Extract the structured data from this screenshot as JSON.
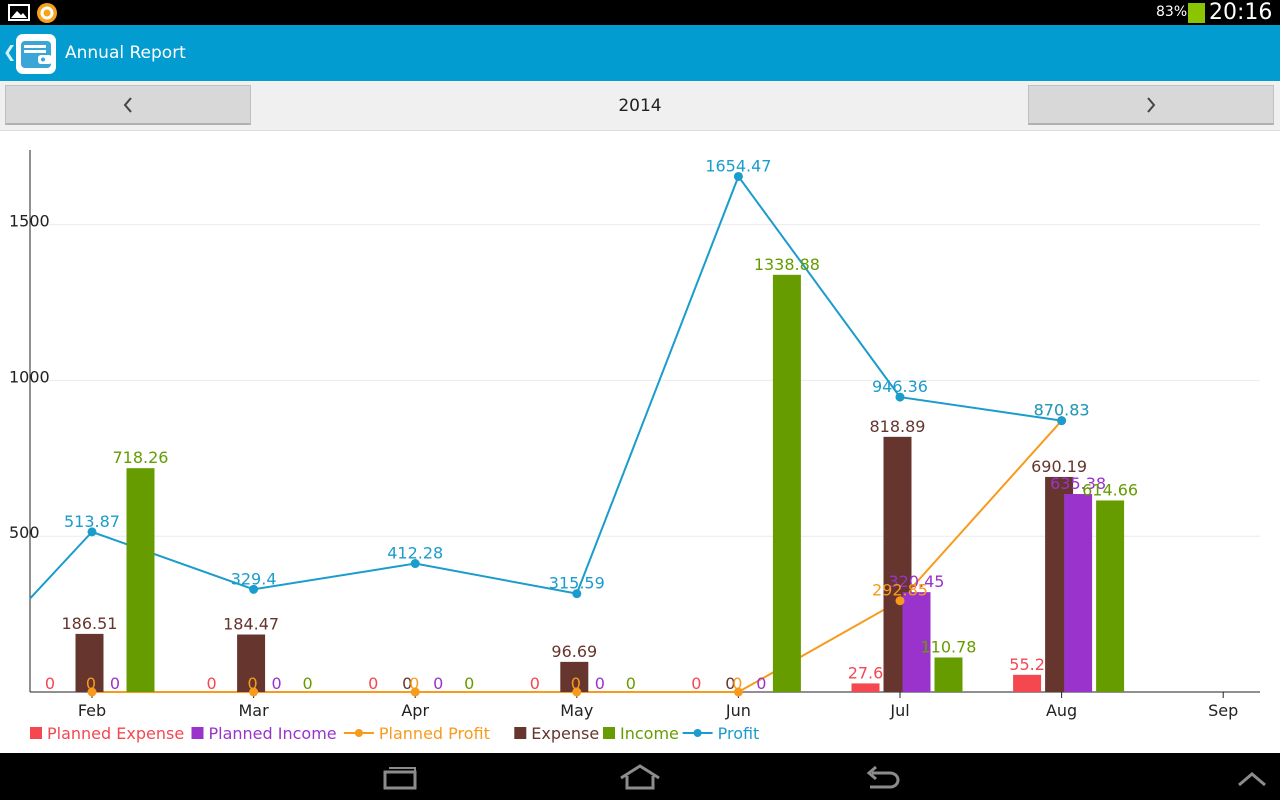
{
  "status_bar": {
    "battery_percent": "83%",
    "time": "20:16",
    "icons": [
      "gallery-icon",
      "app-notification-icon",
      "battery-icon"
    ]
  },
  "app_bar": {
    "title": "Annual Report",
    "icons": [
      "back-chevron-icon",
      "wallet-icon"
    ]
  },
  "year_nav": {
    "year": "2014",
    "icons": [
      "chevron-left-icon",
      "chevron-right-icon"
    ]
  },
  "nav_bar": {
    "icons": [
      "recent-apps-icon",
      "home-icon",
      "back-icon",
      "chevron-up-icon"
    ]
  },
  "colors": {
    "planned_expense": "#f44750",
    "planned_income": "#9a33cc",
    "planned_profit": "#f89a1c",
    "expense": "#66352d",
    "income": "#669c00",
    "profit": "#1a9ccc"
  },
  "chart_data": {
    "type": "bar",
    "title": "",
    "xlabel": "",
    "ylabel": "",
    "categories": [
      "Feb",
      "Mar",
      "Apr",
      "May",
      "Jun",
      "Jul",
      "Aug",
      "Sep"
    ],
    "ylim": [
      0,
      1700
    ],
    "yticks": [
      "500",
      "1000",
      "1500"
    ],
    "grid": true,
    "legend_position": "bottom",
    "series": [
      {
        "name": "Planned Expense",
        "kind": "bar",
        "color_key": "planned_expense",
        "values": [
          0,
          0,
          0,
          0,
          0,
          27.6,
          55.2,
          null
        ],
        "labels": [
          "0",
          "0",
          "0",
          "0",
          "0",
          "27.6",
          "55.2",
          null
        ]
      },
      {
        "name": "Planned Income",
        "kind": "bar",
        "color_key": "planned_income",
        "values": [
          0,
          0,
          0,
          0,
          0,
          320.45,
          635.38,
          null
        ],
        "labels": [
          "0",
          "0",
          "0",
          "0",
          "0",
          "320.45",
          "635.38",
          null
        ]
      },
      {
        "name": "Planned Profit",
        "kind": "line",
        "color_key": "planned_profit",
        "values": [
          0,
          0,
          0,
          0,
          0,
          292.85,
          870.83,
          null
        ],
        "labels": [
          "0",
          "0",
          "0",
          "0",
          "0",
          "292.85",
          "870.83",
          null
        ]
      },
      {
        "name": "Expense",
        "kind": "bar",
        "color_key": "expense",
        "values": [
          186.51,
          184.47,
          0,
          96.69,
          0,
          818.89,
          690.19,
          null
        ],
        "labels": [
          "186.51",
          "184.47",
          "0",
          "96.69",
          "0",
          "818.89",
          "690.19",
          null
        ]
      },
      {
        "name": "Income",
        "kind": "bar",
        "color_key": "income",
        "values": [
          718.26,
          0,
          0,
          0,
          1338.88,
          110.78,
          614.66,
          null
        ],
        "labels": [
          "718.26",
          "0",
          "0",
          "0",
          "1338.88",
          "110.78",
          "614.66",
          null
        ]
      },
      {
        "name": "Profit",
        "kind": "line",
        "color_key": "profit",
        "values": [
          513.87,
          329.4,
          412.28,
          315.59,
          1654.47,
          946.36,
          870.83,
          null
        ],
        "labels": [
          "513.87",
          "329.4",
          "412.28",
          "315.59",
          "1654.47",
          "946.36",
          "870.83",
          null
        ]
      }
    ]
  }
}
